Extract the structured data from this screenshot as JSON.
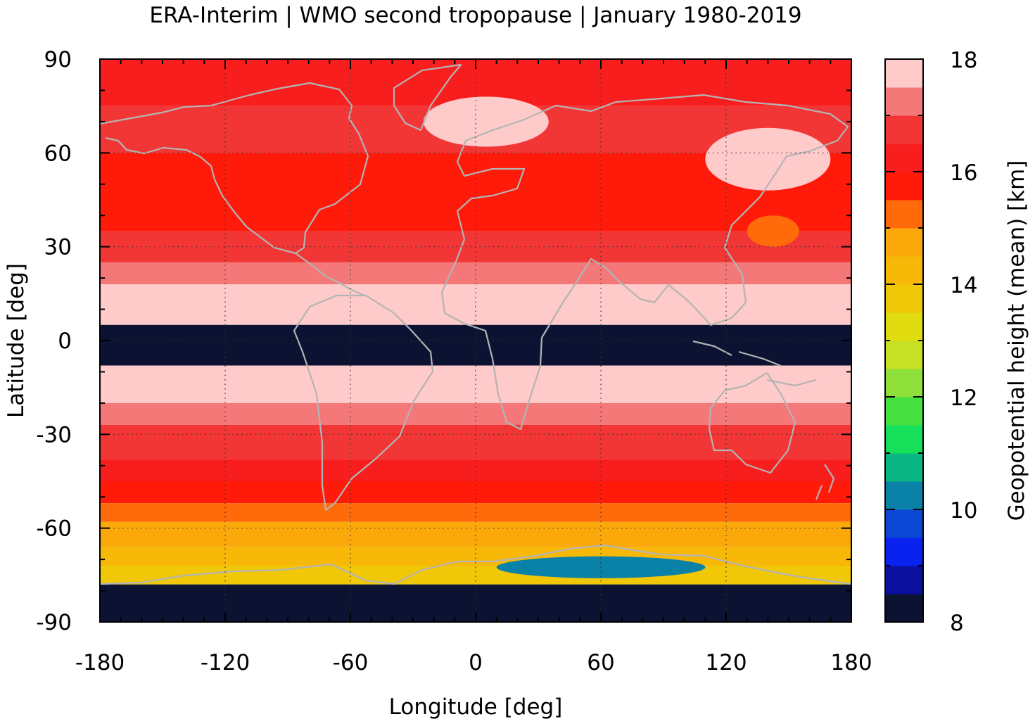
{
  "chart_data": {
    "type": "heatmap",
    "title": "ERA-Interim | WMO second tropopause | January 1980-2019",
    "xlabel": "Longitude [deg]",
    "ylabel": "Latitude [deg]",
    "xlim": [
      -180,
      180
    ],
    "ylim": [
      -90,
      90
    ],
    "x_ticks": [
      -180,
      -120,
      -60,
      0,
      60,
      120,
      180
    ],
    "y_ticks": [
      90,
      60,
      30,
      0,
      -30,
      -60,
      -90
    ],
    "x_tick_labels": [
      "-180",
      "-120",
      "-60",
      "0",
      "60",
      "120",
      "180"
    ],
    "y_tick_labels": [
      "90",
      "60",
      "30",
      "0",
      "-30",
      "-60",
      "-90"
    ],
    "grid": true,
    "colorbar": {
      "label": "Geopotential height (mean) [km]",
      "range": [
        8,
        18
      ],
      "ticks": [
        18,
        16,
        14,
        12,
        10,
        8
      ],
      "tick_labels": [
        "18",
        "16",
        "14",
        "12",
        "10",
        "8"
      ],
      "levels": [
        {
          "from": 8.0,
          "to": 8.5,
          "color": "#0b1232"
        },
        {
          "from": 8.5,
          "to": 9.0,
          "color": "#0a0f9e"
        },
        {
          "from": 9.0,
          "to": 9.5,
          "color": "#0a22f0"
        },
        {
          "from": 9.5,
          "to": 10.0,
          "color": "#0a47d4"
        },
        {
          "from": 10.0,
          "to": 10.5,
          "color": "#0a82a8"
        },
        {
          "from": 10.5,
          "to": 11.0,
          "color": "#0ab784"
        },
        {
          "from": 11.0,
          "to": 11.5,
          "color": "#16df5a"
        },
        {
          "from": 11.5,
          "to": 12.0,
          "color": "#46e040"
        },
        {
          "from": 12.0,
          "to": 12.5,
          "color": "#8fe03a"
        },
        {
          "from": 12.5,
          "to": 13.0,
          "color": "#c6e024"
        },
        {
          "from": 13.0,
          "to": 13.5,
          "color": "#e0dc10"
        },
        {
          "from": 13.5,
          "to": 14.0,
          "color": "#f0c808"
        },
        {
          "from": 14.0,
          "to": 14.5,
          "color": "#f8b808"
        },
        {
          "from": 14.5,
          "to": 15.0,
          "color": "#fba80a"
        },
        {
          "from": 15.0,
          "to": 15.5,
          "color": "#ff6a0a"
        },
        {
          "from": 15.5,
          "to": 16.0,
          "color": "#ff1a0a"
        },
        {
          "from": 16.0,
          "to": 16.5,
          "color": "#f81e1e"
        },
        {
          "from": 16.5,
          "to": 17.0,
          "color": "#f23636"
        },
        {
          "from": 17.0,
          "to": 17.5,
          "color": "#f47878"
        },
        {
          "from": 17.5,
          "to": 18.0,
          "color": "#ffcaca"
        }
      ]
    },
    "zonal_bands_km": [
      {
        "lat": [
          75,
          90
        ],
        "value": 16.2
      },
      {
        "lat": [
          60,
          75
        ],
        "value": 16.7
      },
      {
        "lat": [
          35,
          60
        ],
        "value": 15.8
      },
      {
        "lat": [
          25,
          35
        ],
        "value": 16.7
      },
      {
        "lat": [
          18,
          25
        ],
        "value": 17.2
      },
      {
        "lat": [
          5,
          18
        ],
        "value": 17.7
      },
      {
        "lat": [
          -8,
          5
        ],
        "value": 8.2
      },
      {
        "lat": [
          -20,
          -8
        ],
        "value": 17.7
      },
      {
        "lat": [
          -27,
          -20
        ],
        "value": 17.2
      },
      {
        "lat": [
          -38,
          -27
        ],
        "value": 16.7
      },
      {
        "lat": [
          -45,
          -38
        ],
        "value": 16.2
      },
      {
        "lat": [
          -52,
          -45
        ],
        "value": 15.8
      },
      {
        "lat": [
          -58,
          -52
        ],
        "value": 15.2
      },
      {
        "lat": [
          -66,
          -58
        ],
        "value": 14.6
      },
      {
        "lat": [
          -72,
          -66
        ],
        "value": 14.1
      },
      {
        "lat": [
          -78,
          -72
        ],
        "value": 13.6
      },
      {
        "lat": [
          -90,
          -78
        ],
        "value": 8.2
      }
    ],
    "features": [
      {
        "name": "high over north Atlantic / Europe",
        "lon": [
          -25,
          35
        ],
        "lat": [
          62,
          78
        ],
        "value": 17.7
      },
      {
        "name": "high over Siberia",
        "lon": [
          110,
          170
        ],
        "lat": [
          48,
          68
        ],
        "value": 17.7
      },
      {
        "name": "low over north-west Pacific",
        "lon": [
          130,
          155
        ],
        "lat": [
          30,
          40
        ],
        "value": 15.2
      },
      {
        "name": "deep low over Antarctica",
        "lon": [
          10,
          110
        ],
        "lat": [
          -76,
          -69
        ],
        "value": 10.2
      }
    ],
    "coastlines": {
      "color": "#b4b4b4"
    }
  }
}
